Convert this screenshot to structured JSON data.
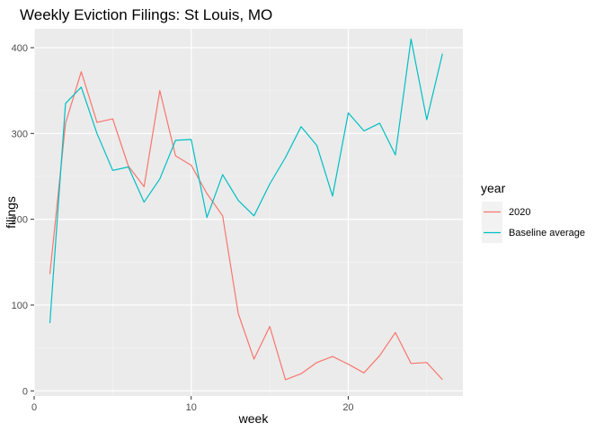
{
  "chart_data": {
    "type": "line",
    "title": "Weekly Eviction Filings: St Louis, MO",
    "xlabel": "week",
    "ylabel": "filings",
    "xlim": [
      0,
      27.3
    ],
    "ylim": [
      -6,
      422
    ],
    "x_ticks": [
      0,
      10,
      20
    ],
    "y_ticks": [
      0,
      100,
      200,
      300,
      400
    ],
    "grid": true,
    "legend": {
      "title": "year",
      "position": "right"
    },
    "x": [
      1,
      2,
      3,
      4,
      5,
      6,
      7,
      8,
      9,
      10,
      11,
      12,
      13,
      14,
      15,
      16,
      17,
      18,
      19,
      20,
      21,
      22,
      23,
      24,
      25,
      26
    ],
    "series": [
      {
        "name": "2020",
        "color": "#f8766d",
        "values": [
          136,
          312,
          372,
          313,
          317,
          262,
          238,
          350,
          274,
          263,
          230,
          204,
          90,
          37,
          75,
          13,
          20,
          33,
          40,
          31,
          21,
          41,
          68,
          32,
          33,
          13
        ]
      },
      {
        "name": "Baseline average",
        "color": "#00bfc4",
        "values": [
          79,
          335,
          354,
          300,
          257,
          261,
          220,
          247,
          292,
          293,
          202,
          252,
          222,
          204,
          241,
          272,
          308,
          286,
          227,
          324,
          303,
          312,
          275,
          410,
          316,
          393
        ]
      }
    ]
  }
}
